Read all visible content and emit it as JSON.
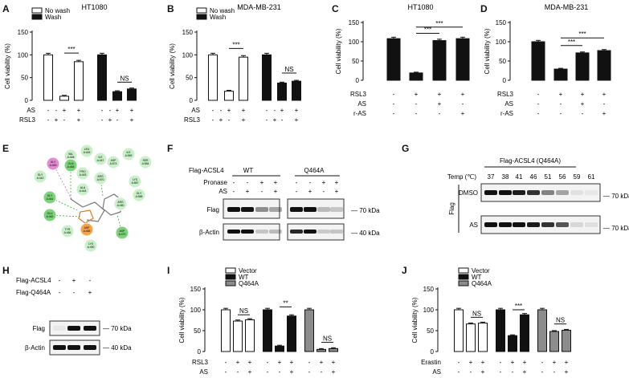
{
  "panels": {
    "A": {
      "letter": "A",
      "title": "HT1080",
      "ylabel": "Cell viability (%)",
      "legend": [
        "No wash",
        "Wash"
      ],
      "yticks": [
        "0",
        "50",
        "100",
        "150"
      ],
      "rows": [
        {
          "label": "AS",
          "signs": [
            "-",
            "-",
            "+",
            "+",
            "-",
            "-",
            "+",
            "+"
          ]
        },
        {
          "label": "RSL3",
          "signs": [
            "-",
            "+",
            "-",
            "+",
            "-",
            "+",
            "-",
            "+"
          ]
        }
      ],
      "sig": [
        "***",
        "NS"
      ]
    },
    "B": {
      "letter": "B",
      "title": "MDA-MB-231",
      "ylabel": "Cell viability (%)",
      "legend": [
        "No wash",
        "Wash"
      ],
      "yticks": [
        "0",
        "50",
        "100",
        "150"
      ],
      "rows": [
        {
          "label": "AS",
          "signs": [
            "-",
            "-",
            "+",
            "+",
            "-",
            "-",
            "+",
            "+"
          ]
        },
        {
          "label": "RSL3",
          "signs": [
            "-",
            "+",
            "-",
            "+",
            "-",
            "+",
            "-",
            "+"
          ]
        }
      ],
      "sig": [
        "***",
        "NS"
      ]
    },
    "C": {
      "letter": "C",
      "title": "HT1080",
      "ylabel": "Cell viability (%)",
      "yticks": [
        "0",
        "50",
        "100",
        "150"
      ],
      "rows": [
        {
          "label": "RSL3",
          "signs": [
            "-",
            "+",
            "+",
            "+"
          ]
        },
        {
          "label": "AS",
          "signs": [
            "-",
            "-",
            "+",
            "-"
          ]
        },
        {
          "label": "r-AS",
          "signs": [
            "-",
            "-",
            "-",
            "+"
          ]
        }
      ],
      "sig": [
        "***",
        "***"
      ]
    },
    "D": {
      "letter": "D",
      "title": "MDA-MB-231",
      "ylabel": "Cell viability (%)",
      "yticks": [
        "0",
        "50",
        "100",
        "150"
      ],
      "rows": [
        {
          "label": "RSL3",
          "signs": [
            "-",
            "+",
            "+",
            "+"
          ]
        },
        {
          "label": "AS",
          "signs": [
            "-",
            "-",
            "+",
            "-"
          ]
        },
        {
          "label": "r-AS",
          "signs": [
            "-",
            "-",
            "-",
            "+"
          ]
        }
      ],
      "sig": [
        "***",
        "***"
      ]
    },
    "E": {
      "letter": "E",
      "residues": [
        "VAL A:448",
        "LEU A:445",
        "ILE A:447",
        "ILE A:569",
        "GLY A:463",
        "GLN A:464",
        "PRO A:443",
        "ASP A:573",
        "SER A:584",
        "GLY A:442",
        "ARG A:570",
        "LYS A:587",
        "ALA A:444",
        "GLY A:588",
        "GLY A:461",
        "ARG A:460",
        "GLU A:462",
        "TYR A:466",
        "ASP A:465",
        "ASP A:470",
        "LYS A:490"
      ]
    },
    "F": {
      "letter": "F",
      "top": "Flag-ACSL4",
      "groups": [
        "WT",
        "Q464A"
      ],
      "rows": [
        {
          "label": "Pronase",
          "signs": [
            "-",
            "-",
            "+",
            "+",
            "-",
            "-",
            "+",
            "+"
          ]
        },
        {
          "label": "AS",
          "signs": [
            "-",
            "+",
            "-",
            "+",
            "-",
            "+",
            "-",
            "+"
          ]
        }
      ],
      "blots": [
        "Flag",
        "β-Actin"
      ],
      "kda": [
        "70 kDa",
        "40 kDa"
      ]
    },
    "G": {
      "letter": "G",
      "top": "Flag-ACSL4 (Q464A)",
      "temp_label": "Temp (℃)",
      "temps": [
        "37",
        "38",
        "41",
        "46",
        "51",
        "56",
        "59",
        "61"
      ],
      "side": "Flag",
      "blots": [
        "DMSO",
        "AS"
      ],
      "kda": [
        "70 kDa",
        "70 kDa"
      ]
    },
    "H": {
      "letter": "H",
      "rows": [
        {
          "label": "Flag-ACSL4",
          "signs": [
            "-",
            "+",
            "-"
          ]
        },
        {
          "label": "Flag-Q464A",
          "signs": [
            "-",
            "-",
            "+"
          ]
        }
      ],
      "blots": [
        "Flag",
        "β-Actin"
      ],
      "kda": [
        "70 kDa",
        "40 kDa"
      ]
    },
    "I": {
      "letter": "I",
      "ylabel": "Cell viability (%)",
      "legend": [
        "Vector",
        "WT",
        "Q464A"
      ],
      "yticks": [
        "0",
        "50",
        "100",
        "150"
      ],
      "rows": [
        {
          "label": "RSL3",
          "signs": [
            "-",
            "+",
            "+",
            "-",
            "+",
            "+",
            "-",
            "+",
            "+"
          ]
        },
        {
          "label": "AS",
          "signs": [
            "-",
            "-",
            "+",
            "-",
            "-",
            "+",
            "-",
            "-",
            "+"
          ]
        }
      ],
      "sig": [
        "NS",
        "**",
        "NS"
      ]
    },
    "J": {
      "letter": "J",
      "ylabel": "Cell viability (%)",
      "legend": [
        "Vector",
        "WT",
        "Q464A"
      ],
      "yticks": [
        "0",
        "50",
        "100",
        "150"
      ],
      "rows": [
        {
          "label": "Erastin",
          "signs": [
            "-",
            "+",
            "+",
            "-",
            "+",
            "+",
            "-",
            "+",
            "+"
          ]
        },
        {
          "label": "AS",
          "signs": [
            "-",
            "-",
            "+",
            "-",
            "-",
            "+",
            "-",
            "-",
            "+"
          ]
        }
      ],
      "sig": [
        "NS",
        "***",
        "NS"
      ]
    }
  },
  "colors": {
    "black": "#111111",
    "white": "#ffffff",
    "gray": "#8c8c8c"
  },
  "chart_data": [
    {
      "panel": "A",
      "type": "bar",
      "ylim": [
        0,
        150
      ],
      "series": [
        {
          "name": "No wash",
          "values": [
            100,
            9,
            85
          ]
        },
        {
          "name": "Wash",
          "values": [
            100,
            19,
            25
          ]
        }
      ]
    },
    {
      "panel": "B",
      "type": "bar",
      "ylim": [
        0,
        150
      ],
      "series": [
        {
          "name": "No wash",
          "values": [
            100,
            20,
            95
          ]
        },
        {
          "name": "Wash",
          "values": [
            100,
            38,
            42
          ]
        }
      ]
    },
    {
      "panel": "C",
      "type": "bar",
      "ylim": [
        0,
        150
      ],
      "values": [
        108,
        19,
        103,
        108
      ]
    },
    {
      "panel": "D",
      "type": "bar",
      "ylim": [
        0,
        150
      ],
      "values": [
        100,
        29,
        71,
        77
      ]
    },
    {
      "panel": "I",
      "type": "bar",
      "ylim": [
        0,
        150
      ],
      "series": [
        {
          "name": "Vector",
          "values": [
            100,
            73,
            76
          ]
        },
        {
          "name": "WT",
          "values": [
            100,
            13,
            85
          ]
        },
        {
          "name": "Q464A",
          "values": [
            100,
            5,
            7
          ]
        }
      ]
    },
    {
      "panel": "J",
      "type": "bar",
      "ylim": [
        0,
        150
      ],
      "series": [
        {
          "name": "Vector",
          "values": [
            100,
            66,
            68
          ]
        },
        {
          "name": "WT",
          "values": [
            100,
            38,
            88
          ]
        },
        {
          "name": "Q464A",
          "values": [
            100,
            48,
            51
          ]
        }
      ]
    }
  ]
}
